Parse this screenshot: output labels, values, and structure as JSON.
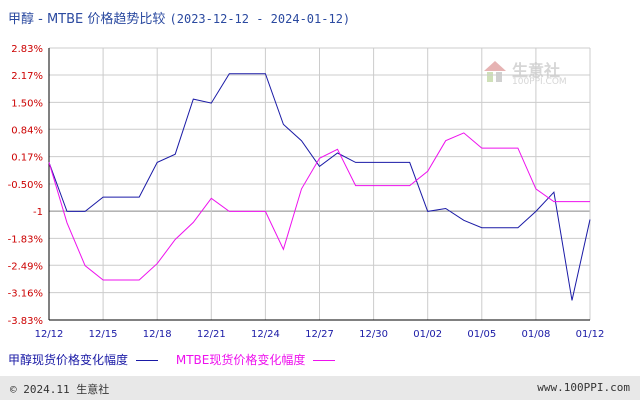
{
  "title": {
    "main": "甲醇 - MTBE 价格趋势比较",
    "range": "(2023-12-12 - 2024-01-12)"
  },
  "watermark": {
    "text": "生意社",
    "sub": "100PPI.COM"
  },
  "footer": {
    "copyright": "© 2024.11 生意社",
    "site": "www.100PPI.com"
  },
  "colors": {
    "series1": "#1a1aa6",
    "series2": "#ee11ee",
    "axis": "#000000",
    "grid": "#cccccc",
    "zero": "#888888"
  },
  "chart_data": {
    "type": "line",
    "y_tick_labels": [
      "2.83%",
      "2.17%",
      "1.50%",
      "0.84%",
      "0.17%",
      "-0.50%",
      "-1",
      "-1.83%",
      "-2.49%",
      "-3.16%",
      "-3.83%"
    ],
    "y_tick_values": [
      2.83,
      2.17,
      1.5,
      0.84,
      0.17,
      -0.5,
      -1.165,
      -1.83,
      -2.49,
      -3.16,
      -3.83
    ],
    "ylim": [
      -3.83,
      2.83
    ],
    "x_tick_labels": [
      "12/12",
      "12/15",
      "12/18",
      "12/21",
      "12/24",
      "12/27",
      "12/30",
      "01/02",
      "01/05",
      "01/08",
      "01/12"
    ],
    "x_tick_days": [
      0,
      3,
      6,
      9,
      12,
      15,
      18,
      21,
      24,
      27,
      30
    ],
    "xlim": [
      0,
      30
    ],
    "grid": true,
    "legend": "bottom",
    "series": [
      {
        "name": "甲醇现货价格变化幅度",
        "x": [
          0,
          1,
          2,
          3,
          4,
          5,
          6,
          7,
          8,
          9,
          10,
          11,
          12,
          13,
          14,
          15,
          16,
          17,
          18,
          19,
          20,
          21,
          22,
          23,
          24,
          25,
          26,
          27,
          28,
          29,
          30
        ],
        "y": [
          0.03,
          -1.17,
          -1.17,
          -0.82,
          -0.82,
          -0.82,
          0.03,
          0.23,
          1.58,
          1.48,
          2.2,
          2.2,
          2.2,
          0.96,
          0.56,
          -0.07,
          0.26,
          0.03,
          0.03,
          0.03,
          0.03,
          -1.17,
          -1.1,
          -1.39,
          -1.57,
          -1.57,
          -1.57,
          -1.17,
          -0.7,
          -3.35,
          -1.37
        ]
      },
      {
        "name": "MTBE现货价格变化幅度",
        "x": [
          0,
          1,
          2,
          3,
          4,
          5,
          6,
          7,
          8,
          9,
          10,
          11,
          12,
          13,
          14,
          15,
          16,
          17,
          18,
          19,
          20,
          21,
          22,
          23,
          24,
          25,
          26,
          27,
          28,
          29,
          30
        ],
        "y": [
          0.03,
          -1.45,
          -2.5,
          -2.85,
          -2.85,
          -2.85,
          -2.45,
          -1.86,
          -1.44,
          -0.85,
          -1.17,
          -1.17,
          -1.17,
          -2.1,
          -0.62,
          0.13,
          0.35,
          -0.54,
          -0.54,
          -0.54,
          -0.54,
          -0.19,
          0.56,
          0.75,
          0.38,
          0.38,
          0.38,
          -0.62,
          -0.93,
          -0.93,
          -0.93
        ]
      }
    ]
  },
  "legend_items": [
    "甲醇现货价格变化幅度",
    "MTBE现货价格变化幅度"
  ]
}
